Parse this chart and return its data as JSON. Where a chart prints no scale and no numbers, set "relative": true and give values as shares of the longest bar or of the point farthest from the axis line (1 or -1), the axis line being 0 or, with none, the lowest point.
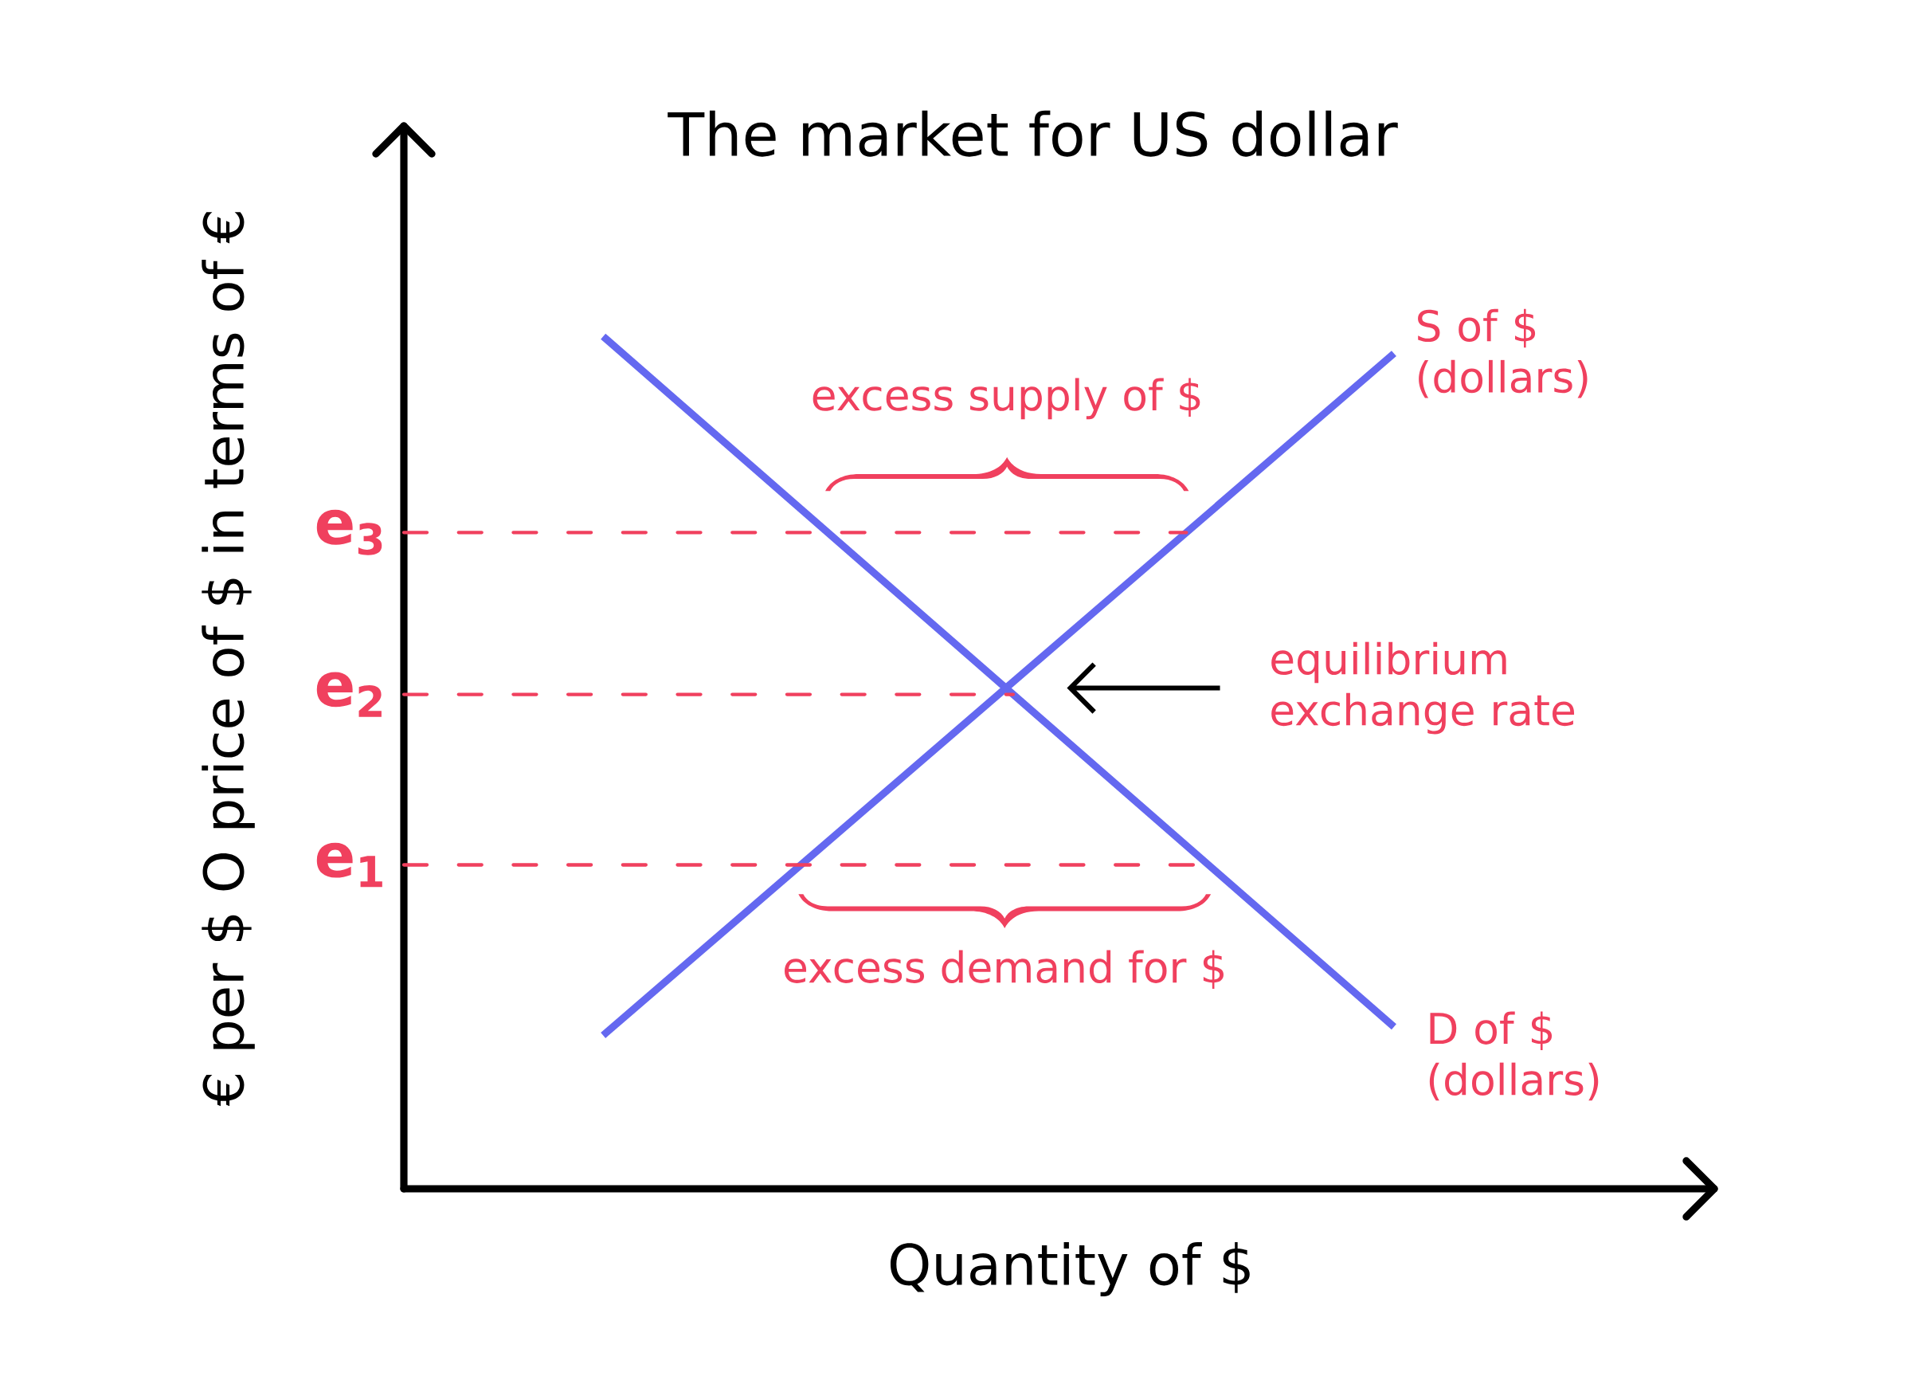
{
  "chart_data": {
    "type": "line",
    "title": "The market for US dollar",
    "xlabel": "Quantity of $",
    "ylabel": "€ per $ O price of $ in terms of €",
    "relative": true,
    "categories": [
      null,
      null
    ],
    "series": [
      {
        "name": "D of $ (dollars)",
        "color": "#6468f0",
        "values": [
          1,
          0.19
        ]
      },
      {
        "name": "S of $ (dollars)",
        "color": "#6468f0",
        "values": [
          0.18,
          0.98
        ]
      }
    ],
    "ref_lines": [
      {
        "axis": "y",
        "value": 0.77,
        "label": "e$_{3}$",
        "color": "#f0405e",
        "line_style": "dashed"
      },
      {
        "axis": "y",
        "value": 0.58,
        "label": "e$_{2}$",
        "color": "#f0405e",
        "line_style": "dashed"
      },
      {
        "axis": "y",
        "value": 0.38,
        "label": "e$_{1}$",
        "color": "#f0405e",
        "line_style": "dashed"
      }
    ],
    "annotations": [
      {
        "text": "excess supply of $",
        "y": 0.77
      },
      "equilibrium exchange rate",
      {
        "text": "excess demand for $",
        "y": 0.38
      }
    ]
  }
}
